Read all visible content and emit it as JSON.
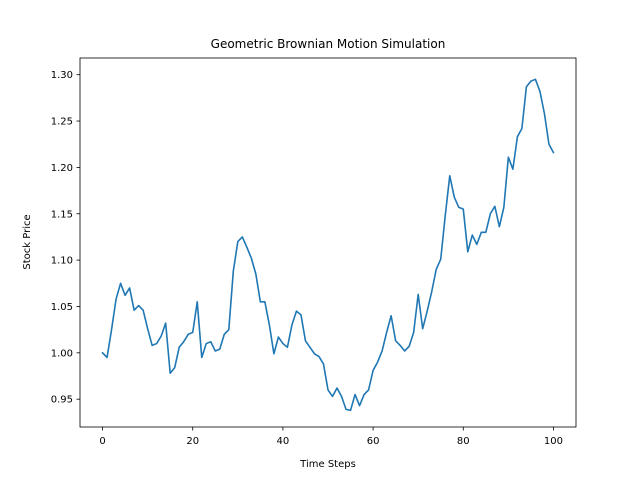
{
  "chart_data": {
    "type": "line",
    "title": "Geometric Brownian Motion Simulation",
    "xlabel": "Time Steps",
    "ylabel": "Stock Price",
    "xlim": [
      -5,
      105
    ],
    "ylim": [
      0.92,
      1.318
    ],
    "xticks": [
      0,
      20,
      40,
      60,
      80,
      100
    ],
    "yticks": [
      0.95,
      1.0,
      1.05,
      1.1,
      1.15,
      1.2,
      1.25,
      1.3
    ],
    "grid": false,
    "color": "#1f77b4",
    "series": [
      {
        "x": [
          0,
          1,
          2,
          3,
          4,
          5,
          6,
          7,
          8,
          9,
          10,
          11,
          12,
          13,
          14,
          15,
          16,
          17,
          18,
          19,
          20,
          21,
          22,
          23,
          24,
          25,
          26,
          27,
          28,
          29,
          30,
          31,
          32,
          33,
          34,
          35,
          36,
          37,
          38,
          39,
          40,
          41,
          42,
          43,
          44,
          45,
          46,
          47,
          48,
          49,
          50,
          51,
          52,
          53,
          54,
          55,
          56,
          57,
          58,
          59,
          60,
          61,
          62,
          63,
          64,
          65,
          66,
          67,
          68,
          69,
          70,
          71,
          72,
          73,
          74,
          75,
          76,
          77,
          78,
          79,
          80,
          81,
          82,
          83,
          84,
          85,
          86,
          87,
          88,
          89,
          90,
          91,
          92,
          93,
          94,
          95,
          96,
          97,
          98,
          99,
          100
        ],
        "values": [
          1.0,
          0.995,
          1.025,
          1.058,
          1.075,
          1.062,
          1.07,
          1.046,
          1.051,
          1.046,
          1.026,
          1.008,
          1.01,
          1.018,
          1.032,
          0.978,
          0.984,
          1.006,
          1.012,
          1.02,
          1.022,
          1.055,
          0.995,
          1.01,
          1.012,
          1.002,
          1.004,
          1.02,
          1.025,
          1.088,
          1.12,
          1.125,
          1.114,
          1.102,
          1.085,
          1.055,
          1.055,
          1.03,
          0.999,
          1.017,
          1.01,
          1.006,
          1.03,
          1.045,
          1.041,
          1.013,
          1.006,
          0.999,
          0.996,
          0.988,
          0.96,
          0.953,
          0.962,
          0.953,
          0.939,
          0.938,
          0.955,
          0.943,
          0.955,
          0.96,
          0.981,
          0.99,
          1.002,
          1.022,
          1.04,
          1.013,
          1.008,
          1.002,
          1.007,
          1.022,
          1.063,
          1.026,
          1.045,
          1.066,
          1.09,
          1.101,
          1.148,
          1.191,
          1.168,
          1.157,
          1.155,
          1.109,
          1.127,
          1.117,
          1.13,
          1.13,
          1.15,
          1.158,
          1.136,
          1.157,
          1.211,
          1.198,
          1.233,
          1.242,
          1.287,
          1.293,
          1.295,
          1.282,
          1.258,
          1.225,
          1.216
        ]
      }
    ]
  }
}
